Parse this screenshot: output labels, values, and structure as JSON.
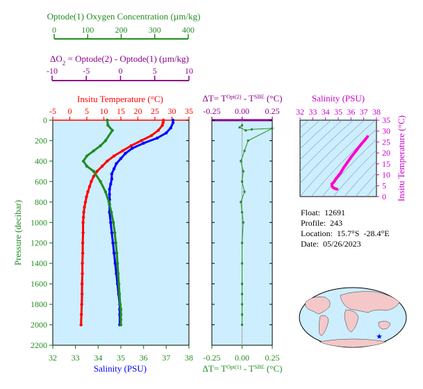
{
  "oxygen_axis": {
    "title": "Optode(1) Oxygen Concentration (µm/kg)",
    "ticks": [
      0,
      100,
      200,
      300,
      400
    ],
    "range": [
      0,
      400
    ],
    "color": "#228b22"
  },
  "delta_o2_axis": {
    "title_prefix": "ΔO",
    "title_sub": "2",
    "title_rest": " = Optode(2) - Optode(1)    (µm/kg)",
    "ticks": [
      -10,
      -5,
      0,
      5,
      10
    ],
    "range": [
      -10,
      10
    ],
    "color": "#8b008b"
  },
  "temperature_axis": {
    "title": "Insitu Temperature (°C)",
    "ticks": [
      -5,
      0,
      5,
      10,
      15,
      20,
      25,
      30,
      35
    ],
    "range": [
      -5,
      35
    ],
    "color": "#ff0000"
  },
  "salinity_axis": {
    "title": "Salinity (PSU)",
    "ticks": [
      32,
      33,
      34,
      35,
      36,
      37,
      38
    ],
    "range": [
      32,
      38
    ],
    "color": "#0000ff"
  },
  "pressure_axis": {
    "title": "Pressure (decibar)",
    "ticks": [
      0,
      200,
      400,
      600,
      800,
      1000,
      1200,
      1400,
      1600,
      1800,
      2000,
      2200
    ],
    "range": [
      0,
      2200
    ],
    "color": "#228b22"
  },
  "dt_top_axis": {
    "title_a": "ΔT= T",
    "title_sup1": "Opt(2)",
    "title_b": " - T",
    "title_sup2": "SBE",
    "title_c": " (°C)",
    "ticks": [
      "-0.25",
      "0.00",
      "0.25"
    ],
    "range": [
      -0.25,
      0.25
    ],
    "color": "#8b008b"
  },
  "dt_bottom_axis": {
    "title_a": "ΔT= T",
    "title_sup1": "Opt(1)",
    "title_b": " - T",
    "title_sup2": "SBE",
    "title_c": " (°C)",
    "ticks": [
      "-0.25",
      "0.00",
      "0.25"
    ],
    "color": "#228b22"
  },
  "ts_plot": {
    "x_title": "Salinity (PSU)",
    "x_ticks": [
      32,
      33,
      34,
      35,
      36,
      37,
      38
    ],
    "y_title": "Insitu Temperature (°C)",
    "y_ticks": [
      0,
      5,
      10,
      15,
      20,
      25,
      30,
      35
    ],
    "color": "#cc00cc"
  },
  "float_info": {
    "float": "Float:  12691",
    "profile": "Profile:  243",
    "location": "Location:  15.7°S  -28.4°E",
    "date": "Date:  05/26/2023"
  },
  "chart_data": [
    {
      "type": "line",
      "name": "profiles",
      "ylabel": "Pressure (decibar)",
      "ylim": [
        0,
        2200
      ],
      "series": [
        {
          "name": "Insitu Temperature (°C)",
          "color": "#ff0000",
          "x": [
            27.5,
            27.4,
            27.2,
            26.0,
            24.0,
            21.0,
            18.0,
            15.5,
            13.0,
            11.0,
            9.5,
            8.0,
            7.0,
            6.3,
            5.8,
            5.3,
            4.9,
            4.6,
            4.3,
            4.1,
            4.0,
            3.9,
            3.9,
            3.8,
            3.8,
            3.7,
            3.7,
            3.6,
            3.6,
            3.5,
            3.4,
            3.3
          ],
          "y": [
            0,
            25,
            50,
            100,
            150,
            200,
            250,
            300,
            350,
            400,
            450,
            500,
            550,
            600,
            650,
            700,
            750,
            800,
            850,
            900,
            950,
            1000,
            1100,
            1200,
            1300,
            1400,
            1500,
            1600,
            1700,
            1800,
            1900,
            2000
          ]
        },
        {
          "name": "Salinity (PSU)",
          "color": "#0000ff",
          "x": [
            37.3,
            37.3,
            37.2,
            37.0,
            36.6,
            36.0,
            35.5,
            35.2,
            35.0,
            34.8,
            34.7,
            34.6,
            34.6,
            34.55,
            34.5,
            34.5,
            34.5,
            34.5,
            34.5,
            34.55,
            34.6,
            34.65,
            34.7,
            34.75,
            34.8,
            34.85,
            34.9,
            34.95,
            34.95,
            34.95,
            34.95
          ],
          "y": [
            0,
            25,
            75,
            125,
            175,
            225,
            275,
            325,
            375,
            425,
            475,
            525,
            575,
            625,
            675,
            725,
            775,
            825,
            900,
            1000,
            1100,
            1200,
            1300,
            1400,
            1500,
            1600,
            1700,
            1800,
            1850,
            1900,
            2000
          ]
        },
        {
          "name": "Optode(1) Oxygen Concentration (µm/kg)",
          "color": "#228b22",
          "x": [
            160,
            162,
            175,
            155,
            140,
            120,
            100,
            90,
            100,
            120,
            140,
            155,
            165,
            172,
            178,
            182,
            185,
            188,
            190,
            192,
            194,
            196,
            198,
            200,
            200,
            200,
            200
          ],
          "y": [
            0,
            50,
            100,
            200,
            250,
            300,
            350,
            400,
            450,
            500,
            600,
            700,
            800,
            900,
            1000,
            1100,
            1200,
            1300,
            1400,
            1500,
            1600,
            1700,
            1800,
            1850,
            1900,
            1950,
            2000
          ]
        }
      ]
    },
    {
      "type": "scatter",
      "name": "delta-T",
      "xlabel": "ΔT (°C)",
      "xlim": [
        -0.25,
        0.25
      ],
      "ylim": [
        0,
        2200
      ],
      "series": [
        {
          "name": "Opt(1) - SBE",
          "color": "#228b22",
          "x": [
            0.0,
            -0.02,
            0.03,
            0.08,
            0.25,
            0.05,
            0.02,
            -0.01,
            0.01,
            0.0,
            0.02,
            -0.01,
            0.0,
            0.01,
            0.0,
            0.0,
            0.0,
            0.0,
            0.0,
            0.0,
            0.0
          ],
          "y": [
            50,
            70,
            100,
            90,
            80,
            200,
            300,
            400,
            500,
            600,
            700,
            800,
            900,
            1000,
            1200,
            1400,
            1600,
            1700,
            1800,
            1900,
            2000
          ]
        }
      ]
    },
    {
      "type": "scatter",
      "name": "T-S diagram",
      "xlabel": "Salinity (PSU)",
      "ylabel": "Insitu Temperature (°C)",
      "xlim": [
        32,
        38
      ],
      "ylim": [
        0,
        35
      ],
      "series": [
        {
          "name": "T-S",
          "color": "#ff00cc",
          "x": [
            37.3,
            37.1,
            36.8,
            36.4,
            36.0,
            35.7,
            35.4,
            35.2,
            35.0,
            34.8,
            34.7,
            34.6,
            34.5,
            34.5,
            34.55,
            34.6,
            34.7,
            34.9
          ],
          "y": [
            27.5,
            26.0,
            24.0,
            21.0,
            18.0,
            15.5,
            13.0,
            11.0,
            9.5,
            8.0,
            7.0,
            6.3,
            5.8,
            5.0,
            4.5,
            4.1,
            3.8,
            3.4
          ]
        }
      ]
    }
  ]
}
